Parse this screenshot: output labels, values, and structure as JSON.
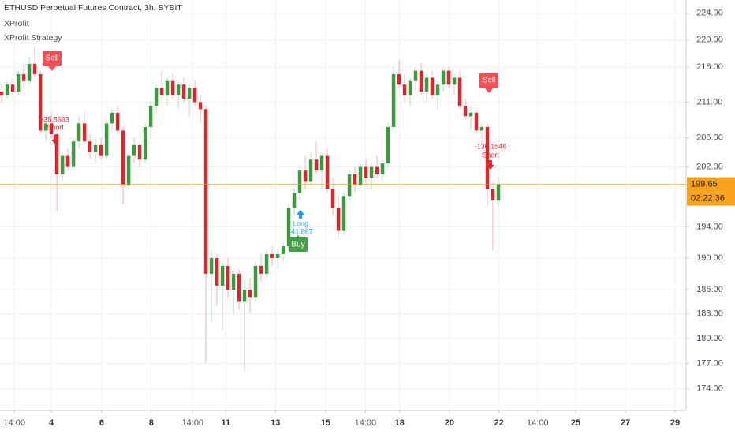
{
  "chart_data": {
    "type": "candlestick",
    "title": "ETHUSD Perpetual Futures Contract, 3h, BYBIT",
    "indicators": [
      "XProfit",
      "XProfit Strategy"
    ],
    "log_scale": true,
    "grid": true,
    "up_color": "#3a9b3d",
    "down_color": "#e0242b",
    "ylim": [
      171.5,
      226
    ],
    "yticks": [
      {
        "value": 174,
        "label": "174.00"
      },
      {
        "value": 177,
        "label": "177.00"
      },
      {
        "value": 180,
        "label": "180.00"
      },
      {
        "value": 183,
        "label": "183.00"
      },
      {
        "value": 186,
        "label": "186.00"
      },
      {
        "value": 190,
        "label": "190.00"
      },
      {
        "value": 194,
        "label": "194.00"
      },
      {
        "value": 202,
        "label": "202.00"
      },
      {
        "value": 206,
        "label": "206.00"
      },
      {
        "value": 211,
        "label": "211.00"
      },
      {
        "value": 216,
        "label": "216.00"
      },
      {
        "value": 220,
        "label": "220.00"
      },
      {
        "value": 224,
        "label": "224.00"
      }
    ],
    "xlim": [
      -0.3,
      124
    ],
    "xticks": [
      {
        "value": 2.3,
        "label": "14:00"
      },
      {
        "value": 9,
        "label": "4"
      },
      {
        "value": 18.1,
        "label": "6"
      },
      {
        "value": 27.1,
        "label": "8"
      },
      {
        "value": 34.6,
        "label": "14:00"
      },
      {
        "value": 40.6,
        "label": "11"
      },
      {
        "value": 49.6,
        "label": "13"
      },
      {
        "value": 58.7,
        "label": "15"
      },
      {
        "value": 65.9,
        "label": "14:00"
      },
      {
        "value": 72.1,
        "label": "18"
      },
      {
        "value": 81.1,
        "label": "20"
      },
      {
        "value": 90.1,
        "label": "22"
      },
      {
        "value": 97.1,
        "label": "14:00"
      },
      {
        "value": 104,
        "label": "25"
      },
      {
        "value": 113,
        "label": "27"
      },
      {
        "value": 122,
        "label": "29"
      }
    ],
    "current_price": 199.65,
    "countdown": "02:22:36",
    "signals": {
      "sell_1": "Sell",
      "short_1_pnl": "-38.5663",
      "short_1": "Short",
      "sell_2": "Sell",
      "short_2_pnl": "-130.1546",
      "short_2": "Short",
      "buy": "Buy",
      "long": "Long",
      "long_pnl": "41.867"
    },
    "candles": [
      [
        212.5,
        213.5,
        211,
        212
      ],
      [
        212,
        214,
        211.5,
        213.5
      ],
      [
        213.5,
        214.5,
        212,
        212.5
      ],
      [
        212.5,
        215.5,
        212,
        215
      ],
      [
        215,
        216.5,
        213,
        214
      ],
      [
        214,
        217.5,
        213.5,
        216.5
      ],
      [
        216.5,
        219,
        214.5,
        215
      ],
      [
        215,
        215.5,
        206.5,
        207
      ],
      [
        207,
        209,
        205.5,
        208
      ],
      [
        208,
        209.5,
        206,
        206.5
      ],
      [
        206.5,
        207,
        196,
        201
      ],
      [
        201,
        204,
        200,
        203.5
      ],
      [
        203.5,
        204.5,
        201.5,
        202
      ],
      [
        202,
        206,
        201.5,
        205.5
      ],
      [
        205.5,
        209,
        204.5,
        208
      ],
      [
        208,
        209.5,
        205,
        205.5
      ],
      [
        205.5,
        206.5,
        203,
        204
      ],
      [
        204,
        206,
        202.5,
        205
      ],
      [
        205,
        206,
        203,
        203.5
      ],
      [
        203.5,
        208.5,
        203,
        208
      ],
      [
        208,
        210,
        207,
        209.5
      ],
      [
        209.5,
        210.5,
        206.5,
        207
      ],
      [
        207,
        207.5,
        197,
        199.5
      ],
      [
        199.5,
        204,
        199,
        203.5
      ],
      [
        203.5,
        206,
        202.5,
        205
      ],
      [
        205,
        205.5,
        202,
        203
      ],
      [
        203,
        208,
        202.5,
        207.5
      ],
      [
        207.5,
        211,
        206,
        210.5
      ],
      [
        210.5,
        213.5,
        209.5,
        213
      ],
      [
        213,
        215.5,
        211.5,
        212
      ],
      [
        212,
        214.5,
        210.5,
        214
      ],
      [
        214,
        215,
        211.5,
        212
      ],
      [
        212,
        214,
        210,
        213.5
      ],
      [
        213.5,
        214.5,
        211,
        211.5
      ],
      [
        211.5,
        213.5,
        209,
        213
      ],
      [
        213,
        214,
        210.5,
        211
      ],
      [
        211,
        212,
        208,
        210
      ],
      [
        210,
        210.5,
        177,
        188
      ],
      [
        188,
        191,
        182,
        190
      ],
      [
        190,
        190.5,
        184,
        186.5
      ],
      [
        186.5,
        189.5,
        181,
        189
      ],
      [
        189,
        190,
        185,
        186
      ],
      [
        186,
        188.5,
        183,
        188
      ],
      [
        188,
        188.5,
        183.5,
        184.5
      ],
      [
        184.5,
        187,
        176,
        186
      ],
      [
        186,
        187.5,
        183,
        185
      ],
      [
        185,
        189.5,
        184.5,
        189
      ],
      [
        189,
        190.5,
        187,
        188
      ],
      [
        188,
        191,
        187.5,
        190.5
      ],
      [
        190.5,
        191.5,
        189,
        190
      ],
      [
        190,
        191,
        188.5,
        190.5
      ],
      [
        190.5,
        192,
        189.5,
        191.5
      ],
      [
        191.5,
        197,
        191,
        196.5
      ],
      [
        196.5,
        199,
        195.5,
        198.5
      ],
      [
        198.5,
        202,
        197.5,
        201.5
      ],
      [
        201.5,
        203.5,
        199,
        200
      ],
      [
        200,
        204,
        199.5,
        203
      ],
      [
        203,
        205.5,
        201,
        201.5
      ],
      [
        201.5,
        204,
        199,
        203.5
      ],
      [
        203.5,
        204.5,
        198.5,
        199
      ],
      [
        199,
        200.5,
        195.5,
        196.5
      ],
      [
        196.5,
        198,
        192.5,
        193.5
      ],
      [
        193.5,
        198.5,
        193,
        198
      ],
      [
        198,
        201.5,
        197.5,
        201
      ],
      [
        201,
        202,
        198.5,
        199.5
      ],
      [
        199.5,
        202.5,
        199,
        202
      ],
      [
        202,
        203,
        199.5,
        200.5
      ],
      [
        200.5,
        202.5,
        199,
        202
      ],
      [
        202,
        203.5,
        200.5,
        201
      ],
      [
        201,
        203,
        200,
        202.5
      ],
      [
        202.5,
        208,
        202,
        207.5
      ],
      [
        207.5,
        216,
        207,
        215
      ],
      [
        215,
        217,
        213,
        213.5
      ],
      [
        213.5,
        215,
        211,
        212
      ],
      [
        212,
        214.5,
        210.5,
        214
      ],
      [
        214,
        216,
        212.5,
        215.5
      ],
      [
        215.5,
        216.5,
        212,
        212.5
      ],
      [
        212.5,
        215,
        211,
        214.5
      ],
      [
        214.5,
        215.5,
        211.5,
        212
      ],
      [
        212,
        214,
        210,
        213.5
      ],
      [
        213.5,
        216,
        212.5,
        215.5
      ],
      [
        215.5,
        216,
        213,
        213.5
      ],
      [
        213.5,
        215,
        212,
        214.5
      ],
      [
        214.5,
        215.5,
        210,
        210.5
      ],
      [
        210.5,
        211.5,
        208.5,
        209
      ],
      [
        209,
        210.5,
        207,
        209.5
      ],
      [
        209.5,
        210,
        206.5,
        207
      ],
      [
        207,
        208,
        205,
        207.5
      ],
      [
        207.5,
        208,
        197,
        199
      ],
      [
        199,
        200,
        191,
        197.5
      ],
      [
        197.5,
        200.5,
        197,
        199.65
      ]
    ]
  }
}
